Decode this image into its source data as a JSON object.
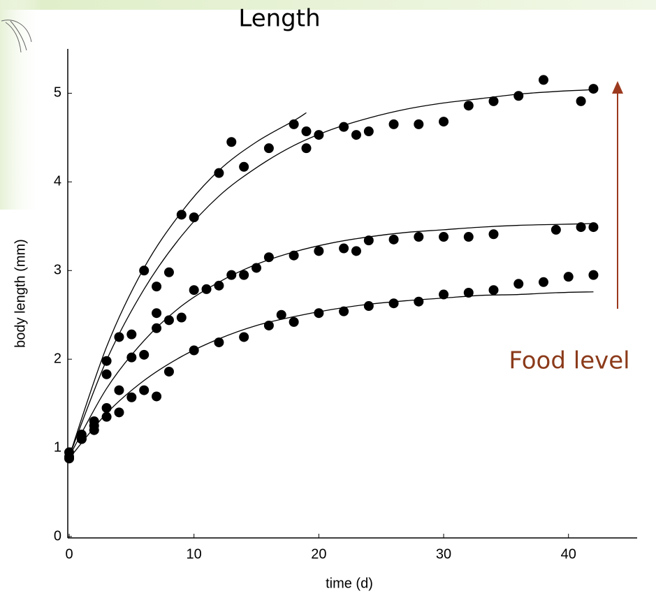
{
  "chart_data": {
    "type": "scatter",
    "title": "Length",
    "x_label": "time (d)",
    "y_label": "body length (mm)",
    "xlim": [
      0,
      45.5
    ],
    "ylim": [
      0,
      5.5
    ],
    "xticks": [
      0,
      10,
      20,
      30,
      40
    ],
    "yticks": [
      0,
      1,
      2,
      3,
      4,
      5
    ],
    "annotation": {
      "text": "Food level",
      "color": "#8b3a1a"
    },
    "series": [
      {
        "type": "scatter",
        "color": "#000000",
        "x": [
          0,
          1,
          2,
          3,
          4,
          5,
          6,
          7,
          8,
          9,
          10,
          12,
          13,
          14,
          16,
          18,
          19,
          19,
          20,
          22,
          23,
          24,
          26,
          28,
          30,
          32,
          34,
          36,
          38,
          41,
          42
        ],
        "values": [
          0.95,
          1.15,
          1.3,
          1.98,
          2.25,
          2.28,
          3.0,
          2.82,
          2.98,
          3.63,
          3.6,
          4.1,
          4.45,
          4.17,
          4.38,
          4.65,
          4.57,
          4.38,
          4.53,
          4.62,
          4.53,
          4.57,
          4.65,
          4.65,
          4.68,
          4.86,
          4.91,
          4.97,
          5.15,
          4.91,
          5.05
        ]
      },
      {
        "type": "scatter",
        "color": "#000000",
        "x": [
          0,
          1,
          2,
          3,
          4,
          5,
          6,
          7,
          7,
          8,
          9,
          10,
          11,
          12,
          13,
          14,
          15,
          16,
          18,
          20,
          22,
          23,
          24,
          26,
          28,
          30,
          32,
          34,
          39,
          41,
          42
        ],
        "values": [
          0.9,
          1.1,
          1.25,
          1.83,
          1.65,
          2.02,
          2.05,
          2.52,
          2.35,
          2.44,
          2.47,
          2.78,
          2.79,
          2.83,
          2.95,
          2.95,
          3.03,
          3.15,
          3.17,
          3.22,
          3.25,
          3.22,
          3.34,
          3.35,
          3.38,
          3.38,
          3.38,
          3.41,
          3.46,
          3.49,
          3.49
        ]
      },
      {
        "type": "scatter",
        "color": "#000000",
        "x": [
          0,
          1,
          2,
          3,
          3,
          4,
          5,
          6,
          7,
          8,
          10,
          12,
          14,
          16,
          17,
          18,
          20,
          22,
          24,
          26,
          28,
          30,
          32,
          34,
          36,
          38,
          40,
          42
        ],
        "values": [
          0.88,
          1.1,
          1.2,
          1.35,
          1.45,
          1.4,
          1.57,
          1.65,
          1.58,
          1.86,
          2.1,
          2.19,
          2.25,
          2.38,
          2.5,
          2.42,
          2.52,
          2.54,
          2.6,
          2.63,
          2.65,
          2.73,
          2.75,
          2.78,
          2.85,
          2.87,
          2.93,
          2.95
        ]
      },
      {
        "type": "line",
        "color": "#000000",
        "x": [
          0,
          3,
          6,
          9,
          12,
          15,
          18,
          21,
          24,
          27,
          30,
          33,
          36,
          39,
          42
        ],
        "values": [
          0.9,
          1.99,
          2.79,
          3.39,
          3.84,
          4.16,
          4.41,
          4.59,
          4.72,
          4.82,
          4.89,
          4.94,
          4.99,
          5.02,
          5.04
        ]
      },
      {
        "type": "line",
        "color": "#000000",
        "x": [
          0,
          3,
          6,
          9,
          12,
          15,
          18,
          19
        ],
        "values": [
          0.9,
          2.14,
          3.03,
          3.66,
          4.13,
          4.45,
          4.69,
          4.78
        ]
      },
      {
        "type": "line",
        "color": "#000000",
        "x": [
          0,
          3,
          6,
          9,
          12,
          15,
          18,
          21,
          24,
          27,
          30,
          33,
          36,
          39,
          42
        ],
        "values": [
          0.9,
          1.67,
          2.21,
          2.6,
          2.87,
          3.07,
          3.21,
          3.31,
          3.38,
          3.43,
          3.46,
          3.49,
          3.51,
          3.52,
          3.53
        ]
      },
      {
        "type": "line",
        "color": "#000000",
        "x": [
          0,
          3,
          6,
          9,
          12,
          15,
          18,
          21,
          24,
          27,
          30,
          33,
          36,
          39,
          42
        ],
        "values": [
          0.88,
          1.39,
          1.76,
          2.03,
          2.23,
          2.38,
          2.48,
          2.56,
          2.62,
          2.66,
          2.69,
          2.72,
          2.73,
          2.75,
          2.76
        ]
      }
    ]
  }
}
